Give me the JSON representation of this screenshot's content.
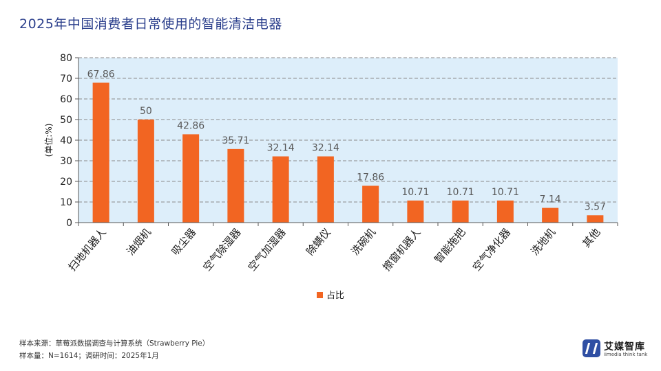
{
  "page": {
    "title": "2025年中国消费者日常使用的智能清洁电器",
    "source_line1": "样本来源：草莓派数据调查与计算系统（Strawberry Pie）",
    "source_line2": "样本量：N=1614；调研时间：2025年1月",
    "brand": {
      "name": "艾媒智库",
      "tagline": "iimedia think tank"
    }
  },
  "colors": {
    "bar": "#f26522",
    "plot_bg": "#ddeefa",
    "title": "#2b3f8c",
    "grid": "#8a8a8a"
  },
  "chart_data": {
    "type": "bar",
    "categories": [
      "扫地机器人",
      "油烟机",
      "吸尘器",
      "空气除湿器",
      "空气加湿器",
      "除螨仪",
      "洗碗机",
      "擦窗机器人",
      "智能拖把",
      "空气净化器",
      "洗地机",
      "其他"
    ],
    "series": [
      {
        "name": "占比",
        "values": [
          67.86,
          50,
          42.86,
          35.71,
          32.14,
          32.14,
          17.86,
          10.71,
          10.71,
          10.71,
          7.14,
          3.57
        ]
      }
    ],
    "value_labels": [
      "67.86",
      "50",
      "42.86",
      "35.71",
      "32.14",
      "32.14",
      "17.86",
      "10.71",
      "10.71",
      "10.71",
      "7.14",
      "3.57"
    ],
    "ylabel": "(单位:%)",
    "ylim": [
      0,
      80
    ],
    "yticks": [
      0,
      10,
      20,
      30,
      40,
      50,
      60,
      70,
      80
    ],
    "grid": true,
    "legend_position": "bottom-center"
  }
}
